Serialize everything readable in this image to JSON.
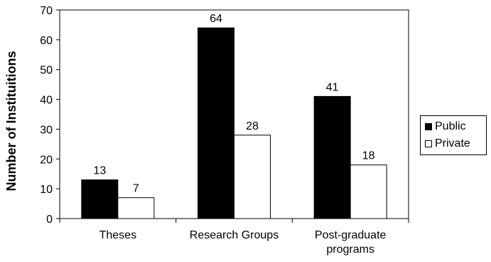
{
  "chart_data": {
    "type": "bar",
    "ylabel": "Number of Instituitions",
    "xlabel": "",
    "title": "",
    "categories": [
      "Theses",
      "Research Groups",
      "Post-graduate programs"
    ],
    "category_lines": [
      [
        "Theses"
      ],
      [
        "Research Groups"
      ],
      [
        "Post-graduate",
        "programs"
      ]
    ],
    "series": [
      {
        "name": "Public",
        "values": [
          13,
          64,
          41
        ],
        "color": "#000000"
      },
      {
        "name": "Private",
        "values": [
          7,
          28,
          18
        ],
        "color": "#ffffff"
      }
    ],
    "ylim": [
      0,
      70
    ],
    "yticks": [
      0,
      10,
      20,
      30,
      40,
      50,
      60,
      70
    ],
    "grid": false,
    "legend_position": "right"
  }
}
